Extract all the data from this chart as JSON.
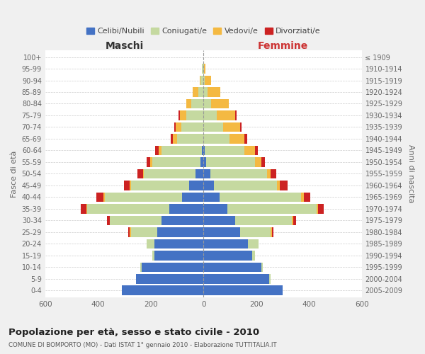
{
  "age_groups": [
    "0-4",
    "5-9",
    "10-14",
    "15-19",
    "20-24",
    "25-29",
    "30-34",
    "35-39",
    "40-44",
    "45-49",
    "50-54",
    "55-59",
    "60-64",
    "65-69",
    "70-74",
    "75-79",
    "80-84",
    "85-89",
    "90-94",
    "95-99",
    "100+"
  ],
  "birth_years": [
    "2005-2009",
    "2000-2004",
    "1995-1999",
    "1990-1994",
    "1985-1989",
    "1980-1984",
    "1975-1979",
    "1970-1974",
    "1965-1969",
    "1960-1964",
    "1955-1959",
    "1950-1954",
    "1945-1949",
    "1940-1944",
    "1935-1939",
    "1930-1934",
    "1925-1929",
    "1920-1924",
    "1915-1919",
    "1910-1914",
    "≤ 1909"
  ],
  "male": {
    "celibi": [
      310,
      255,
      235,
      185,
      185,
      175,
      160,
      130,
      80,
      55,
      30,
      10,
      5,
      0,
      0,
      0,
      0,
      0,
      0,
      0,
      0
    ],
    "coniugati": [
      0,
      2,
      5,
      10,
      30,
      100,
      195,
      310,
      295,
      220,
      195,
      185,
      155,
      100,
      85,
      65,
      45,
      20,
      10,
      5,
      0
    ],
    "vedovi": [
      0,
      0,
      0,
      0,
      0,
      5,
      0,
      5,
      5,
      5,
      5,
      8,
      10,
      15,
      20,
      25,
      20,
      20,
      5,
      0,
      0
    ],
    "divorziati": [
      0,
      0,
      0,
      0,
      0,
      5,
      10,
      20,
      25,
      20,
      20,
      12,
      12,
      8,
      5,
      5,
      0,
      0,
      0,
      0,
      0
    ]
  },
  "female": {
    "nubili": [
      300,
      250,
      220,
      185,
      170,
      140,
      120,
      90,
      60,
      40,
      25,
      10,
      5,
      0,
      0,
      0,
      0,
      0,
      0,
      0,
      0
    ],
    "coniugate": [
      0,
      5,
      5,
      10,
      40,
      115,
      215,
      340,
      310,
      240,
      215,
      185,
      150,
      100,
      75,
      50,
      30,
      15,
      5,
      2,
      0
    ],
    "vedove": [
      0,
      0,
      0,
      0,
      0,
      5,
      5,
      5,
      10,
      10,
      15,
      25,
      40,
      55,
      65,
      70,
      65,
      50,
      25,
      5,
      0
    ],
    "divorziate": [
      0,
      0,
      0,
      0,
      0,
      5,
      10,
      20,
      25,
      30,
      20,
      12,
      12,
      10,
      5,
      5,
      0,
      0,
      0,
      0,
      0
    ]
  },
  "colors": {
    "celibe": "#4472c4",
    "coniugato": "#c5d9a0",
    "vedovo": "#f4b942",
    "divorziato": "#cc2222"
  },
  "xlim": 600,
  "title": "Popolazione per età, sesso e stato civile - 2010",
  "subtitle": "COMUNE DI BOMPORTO (MO) - Dati ISTAT 1° gennaio 2010 - Elaborazione TUTTITALIA.IT",
  "legend_labels": [
    "Celibi/Nubili",
    "Coniugati/e",
    "Vedovi/e",
    "Divorziati/e"
  ],
  "ylabel_left": "Fasce di età",
  "ylabel_right": "Anni di nascita",
  "xlabel_left": "Maschi",
  "xlabel_right": "Femmine",
  "bg_color": "#f0f0f0",
  "plot_bg": "#ffffff",
  "maschi_color": "#333333",
  "femmine_color": "#cc3333"
}
